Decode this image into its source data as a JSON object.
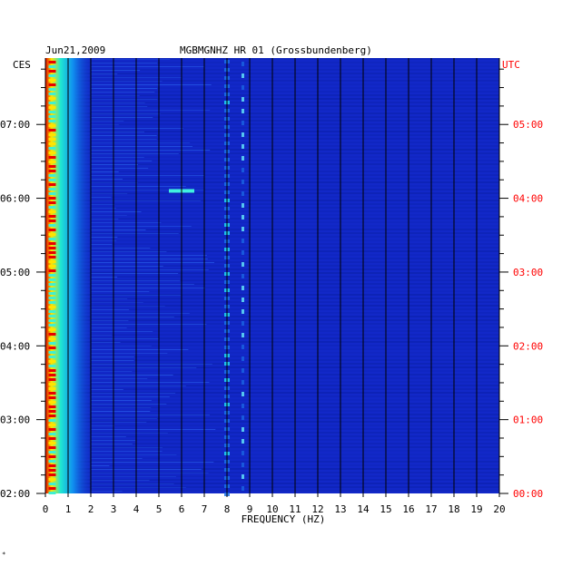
{
  "chart_data": {
    "type": "heatmap",
    "date": "Jun21,2009",
    "station": "MGBMGNHZ HR 01 (Grossbundenberg)",
    "left_axis_title": "CES",
    "right_axis_title": "UTC",
    "xlabel": "FREQUENCY (HZ)",
    "xlim": [
      0,
      20
    ],
    "x_ticks": [
      "0",
      "1",
      "2",
      "3",
      "4",
      "5",
      "6",
      "7",
      "8",
      "9",
      "10",
      "11",
      "12",
      "13",
      "14",
      "15",
      "16",
      "17",
      "18",
      "19",
      "20"
    ],
    "y_ticks_left": [
      "02:00",
      "03:00",
      "04:00",
      "05:00",
      "06:00",
      "07:00"
    ],
    "y_ticks_right": [
      "00:00",
      "01:00",
      "02:00",
      "03:00",
      "04:00",
      "05:00"
    ],
    "ylim_left_hours": [
      2.0,
      7.9
    ],
    "grid": "vertical lines at each integer Hz",
    "colors": {
      "background": "#1228c8",
      "low": "#0a1fa8",
      "mid": "#00c8ff",
      "high": "#ffe400",
      "peak": "#e80000",
      "grid": "#000000",
      "utc_text": "#ff0000"
    },
    "features": [
      {
        "frequency_hz": 0.3,
        "description": "strong low-frequency band"
      },
      {
        "frequency_hz": 8.0,
        "description": "persistent spectral line"
      },
      {
        "frequency_hz": 8.7,
        "description": "persistent spectral line"
      },
      {
        "frequency_hz": 6.0,
        "description": "transient burst near 06:05"
      }
    ]
  },
  "corner_mark": "∗"
}
